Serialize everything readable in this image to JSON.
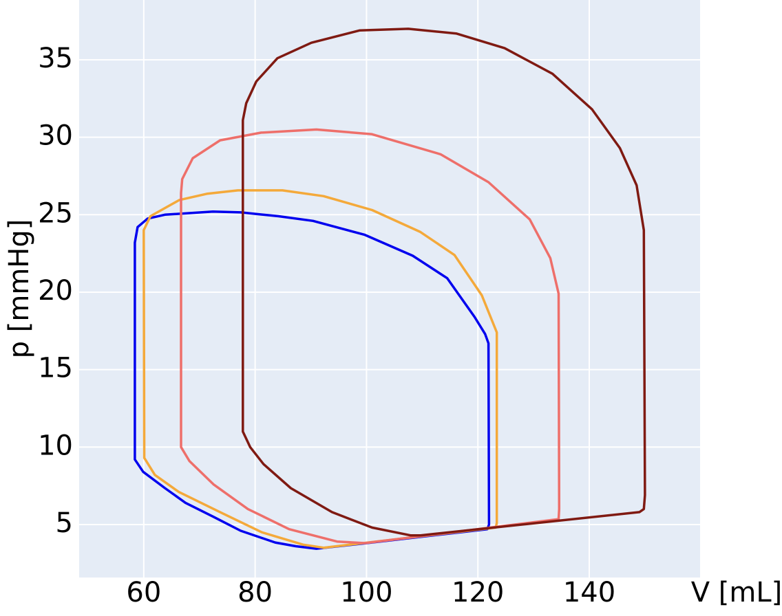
{
  "chart_data": {
    "type": "line",
    "x_label": "V [mL]",
    "y_label": "p [mmHg]",
    "xlim": [
      48.4,
      159.9
    ],
    "ylim": [
      1.58,
      38.86
    ],
    "xticks": [
      60,
      80,
      100,
      120,
      140
    ],
    "yticks": [
      5,
      10,
      15,
      20,
      25,
      30,
      35
    ],
    "grid": true,
    "background": "#e5ecf6",
    "series": [
      {
        "color": "#0000ee",
        "x": [
          58.4,
          58.4,
          58.9,
          60.7,
          63.8,
          72.4,
          77.4,
          84.2,
          90.4,
          99.7,
          108.3,
          114.5,
          119.4,
          121.3,
          121.9,
          122.0,
          121.7,
          100.0,
          91.0,
          87.3,
          83.6,
          77.4,
          72.5,
          67.5,
          63.8,
          59.9
        ],
        "values": [
          9.2,
          23.2,
          24.2,
          24.75,
          25.0,
          25.2,
          25.15,
          24.9,
          24.6,
          23.7,
          22.35,
          20.9,
          18.4,
          17.3,
          16.7,
          5.0,
          4.7,
          3.8,
          3.44,
          3.6,
          3.84,
          4.6,
          5.5,
          6.4,
          7.35,
          8.4
        ]
      },
      {
        "color": "#f4a93a",
        "x": [
          60.1,
          60.0,
          61.2,
          66.4,
          71.3,
          76.9,
          84.9,
          92.3,
          101.0,
          109.6,
          115.8,
          120.7,
          123.4,
          123.4,
          123.2,
          92.3,
          88.6,
          81.2,
          73.7,
          66.3,
          62.0
        ],
        "values": [
          9.3,
          24.0,
          24.9,
          25.95,
          26.35,
          26.57,
          26.57,
          26.2,
          25.3,
          23.9,
          22.4,
          19.8,
          17.4,
          5.1,
          4.8,
          3.5,
          3.7,
          4.5,
          5.8,
          7.1,
          8.2
        ]
      },
      {
        "color": "#ee6f6a",
        "x": [
          66.7,
          66.7,
          66.9,
          68.8,
          73.7,
          81.1,
          91.0,
          100.9,
          113.3,
          121.9,
          129.3,
          133.0,
          134.5,
          134.6,
          134.5,
          99.7,
          94.7,
          86.1,
          78.7,
          72.5,
          68.2
        ],
        "values": [
          10.0,
          26.4,
          27.3,
          28.65,
          29.8,
          30.3,
          30.5,
          30.2,
          28.9,
          27.1,
          24.7,
          22.2,
          19.9,
          6.0,
          5.35,
          3.8,
          3.9,
          4.7,
          6.0,
          7.6,
          9.1
        ]
      },
      {
        "color": "#7f1a12",
        "x": [
          77.8,
          77.8,
          78.4,
          80.2,
          84.0,
          90.1,
          98.8,
          107.5,
          116.1,
          124.8,
          133.4,
          140.5,
          145.5,
          148.5,
          149.8,
          150.0,
          149.8,
          149.0,
          109.7,
          107.9,
          101.0,
          93.8,
          86.4,
          81.5,
          79.1
        ],
        "values": [
          11.0,
          31.1,
          32.2,
          33.6,
          35.1,
          36.1,
          36.9,
          37.0,
          36.7,
          35.75,
          34.1,
          31.8,
          29.3,
          26.9,
          24.0,
          6.9,
          6.0,
          5.8,
          4.3,
          4.3,
          4.8,
          5.8,
          7.35,
          8.9,
          10.0
        ]
      }
    ]
  }
}
